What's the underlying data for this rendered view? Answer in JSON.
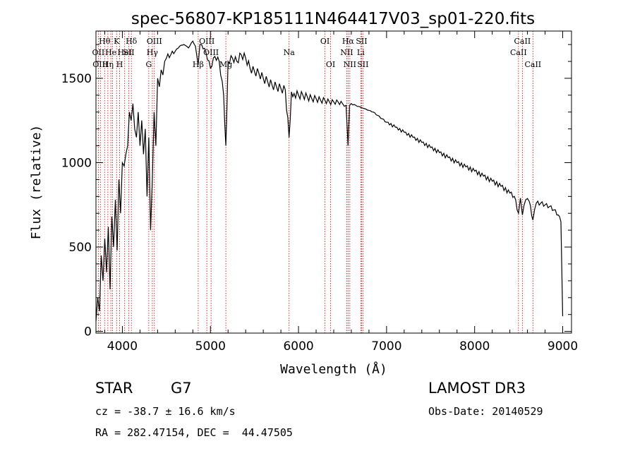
{
  "chart_data": {
    "type": "line",
    "title": "spec-56807-KP185111N464417V03_sp01-220.fits",
    "xlabel": "Wavelength (Å)",
    "ylabel": "Flux (relative)",
    "xlim": [
      3700,
      9100
    ],
    "ylim": [
      -10,
      1780
    ],
    "xticks": [
      4000,
      5000,
      6000,
      7000,
      8000,
      9000
    ],
    "yticks": [
      0,
      500,
      1000,
      1500
    ],
    "grid": false,
    "series": [
      {
        "x": [
          3700,
          3720,
          3740,
          3760,
          3780,
          3800,
          3820,
          3840,
          3860,
          3880,
          3900,
          3920,
          3940,
          3960,
          3980,
          4000,
          4020,
          4040,
          4060,
          4080,
          4100,
          4120,
          4140,
          4160,
          4180,
          4200,
          4220,
          4240,
          4260,
          4280,
          4300,
          4320,
          4340,
          4360,
          4380,
          4400,
          4420,
          4440,
          4460,
          4480,
          4500,
          4550,
          4600,
          4650,
          4700,
          4750,
          4800,
          4830,
          4861,
          4880,
          4900,
          4950,
          5000,
          5050,
          5100,
          5150,
          5175,
          5200,
          5250,
          5300,
          5350,
          5400,
          5450,
          5500,
          5550,
          5600,
          5650,
          5700,
          5750,
          5800,
          5850,
          5893,
          5920,
          5950,
          6000,
          6050,
          6100,
          6150,
          6200,
          6250,
          6300,
          6350,
          6400,
          6450,
          6500,
          6540,
          6563,
          6580,
          6600,
          6650,
          6700,
          6750,
          6800,
          6850,
          6900,
          6950,
          7000,
          7100,
          7200,
          7300,
          7400,
          7500,
          7600,
          7700,
          7800,
          7900,
          8000,
          8100,
          8200,
          8300,
          8400,
          8450,
          8498,
          8520,
          8542,
          8580,
          8620,
          8662,
          8700,
          8750,
          8800,
          8850,
          8900,
          8950,
          8980,
          9000
        ],
        "values": [
          60,
          200,
          120,
          450,
          300,
          550,
          350,
          620,
          250,
          680,
          500,
          780,
          480,
          900,
          700,
          1000,
          980,
          1050,
          1100,
          1300,
          1250,
          1350,
          1200,
          1150,
          1300,
          1100,
          1250,
          1050,
          1200,
          800,
          1150,
          600,
          900,
          1300,
          1100,
          1500,
          1450,
          1550,
          1520,
          1600,
          1620,
          1640,
          1660,
          1690,
          1700,
          1680,
          1720,
          1690,
          1580,
          1700,
          1700,
          1650,
          1560,
          1630,
          1600,
          1400,
          1100,
          1600,
          1620,
          1600,
          1640,
          1620,
          1560,
          1540,
          1530,
          1500,
          1480,
          1460,
          1450,
          1440,
          1430,
          1150,
          1420,
          1410,
          1400,
          1400,
          1390,
          1380,
          1380,
          1370,
          1370,
          1360,
          1360,
          1360,
          1350,
          1340,
          1100,
          1340,
          1350,
          1340,
          1330,
          1320,
          1310,
          1300,
          1280,
          1260,
          1240,
          1210,
          1180,
          1150,
          1120,
          1090,
          1060,
          1030,
          1000,
          975,
          950,
          920,
          890,
          860,
          820,
          800,
          700,
          790,
          690,
          780,
          770,
          660,
          760,
          760,
          750,
          740,
          720,
          690,
          650,
          90
        ]
      }
    ],
    "line_markers": [
      {
        "w": 3727,
        "label": "OII",
        "row": 2
      },
      {
        "w": 3750,
        "label": "OIII",
        "row": 3
      },
      {
        "w": 3798,
        "label": "Hθ",
        "row": 1
      },
      {
        "w": 3835,
        "label": "Hη",
        "row": 3
      },
      {
        "w": 3869,
        "label": "He",
        "row": 2
      },
      {
        "w": 3889,
        "label": "",
        "row": 0
      },
      {
        "w": 3934,
        "label": "K",
        "row": 1
      },
      {
        "w": 3969,
        "label": "H",
        "row": 3
      },
      {
        "w": 4026,
        "label": "HeI",
        "row": 2
      },
      {
        "w": 4072,
        "label": "SII",
        "row": 2
      },
      {
        "w": 4102,
        "label": "Hδ",
        "row": 1
      },
      {
        "w": 4300,
        "label": "G",
        "row": 3
      },
      {
        "w": 4340,
        "label": "Hγ",
        "row": 2
      },
      {
        "w": 4363,
        "label": "OIII",
        "row": 1
      },
      {
        "w": 4861,
        "label": "Hβ",
        "row": 3
      },
      {
        "w": 4959,
        "label": "OIII",
        "row": 1
      },
      {
        "w": 5007,
        "label": "OIII",
        "row": 2
      },
      {
        "w": 5175,
        "label": "Mg",
        "row": 3
      },
      {
        "w": 5893,
        "label": "Na",
        "row": 2
      },
      {
        "w": 6300,
        "label": "OI",
        "row": 1
      },
      {
        "w": 6364,
        "label": "OI",
        "row": 3
      },
      {
        "w": 6548,
        "label": "NII",
        "row": 2
      },
      {
        "w": 6563,
        "label": "Hα",
        "row": 1
      },
      {
        "w": 6583,
        "label": "NII",
        "row": 3
      },
      {
        "w": 6707,
        "label": "Li",
        "row": 2
      },
      {
        "w": 6716,
        "label": "SII",
        "row": 1
      },
      {
        "w": 6731,
        "label": "SII",
        "row": 3
      },
      {
        "w": 8498,
        "label": "CaII",
        "row": 2
      },
      {
        "w": 8542,
        "label": "CaII",
        "row": 1
      },
      {
        "w": 8662,
        "label": "CaII",
        "row": 3
      }
    ]
  },
  "info": {
    "object_class": "STAR",
    "subclass": "G7",
    "survey": "LAMOST DR3",
    "redshift": "cz = -38.7 ± 16.6 km/s",
    "obs_date": "Obs-Date: 20140529",
    "coords": "RA = 282.47154, DEC =  44.47505"
  },
  "colors": {
    "spectrum": "#000000",
    "marker": "#cc0000"
  }
}
